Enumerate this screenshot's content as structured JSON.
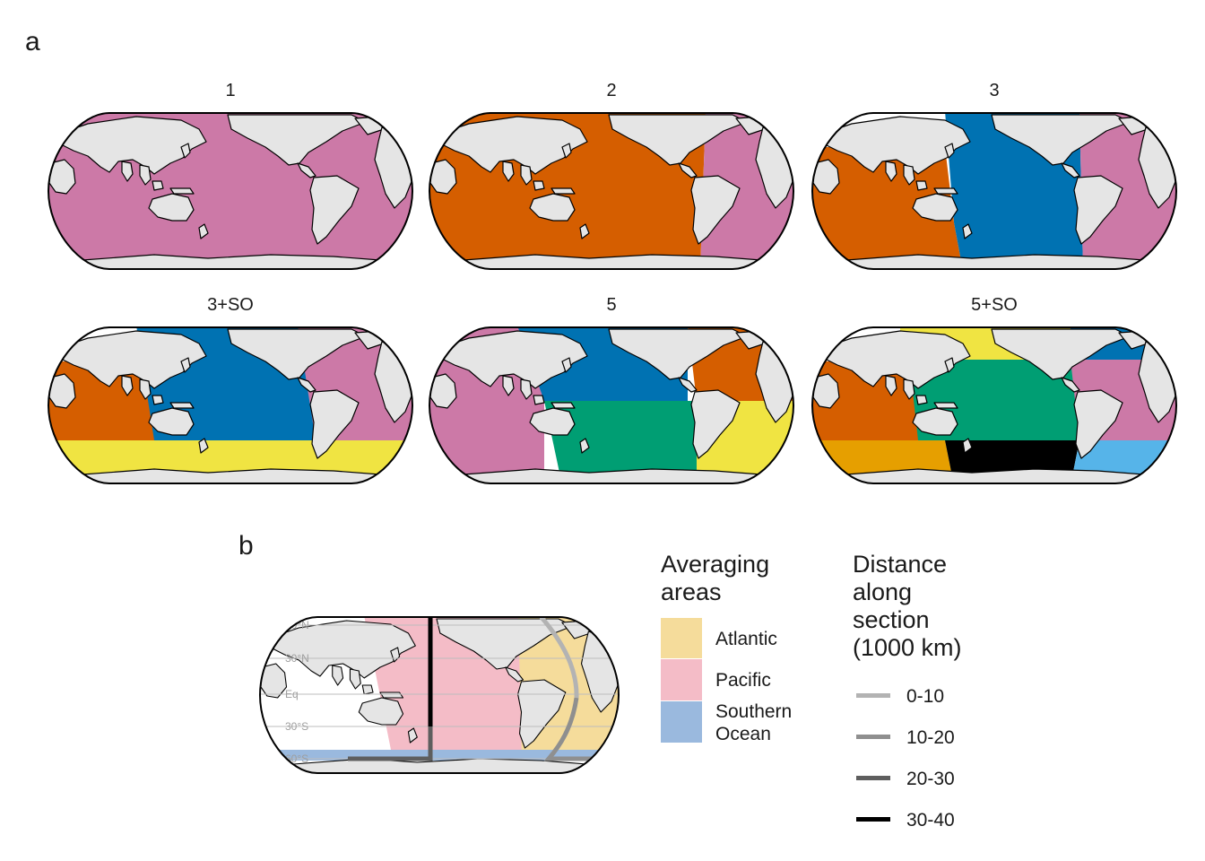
{
  "panel_a_label": "a",
  "panel_b_label": "b",
  "colors": {
    "land": "#e5e5e5",
    "pink": "#cc79a7",
    "orange": "#d55e00",
    "blue": "#0072b2",
    "yellow": "#f0e442",
    "green": "#009e73",
    "gold": "#e69f00",
    "sky": "#56b4e9",
    "black": "#000000"
  },
  "maps": [
    {
      "title": "1"
    },
    {
      "title": "2"
    },
    {
      "title": "3"
    },
    {
      "title": "3+SO"
    },
    {
      "title": "5"
    },
    {
      "title": "5+SO"
    }
  ],
  "panel_b": {
    "lat_labels": [
      "60°N",
      "30°N",
      "Eq",
      "30°S",
      "60°S"
    ]
  },
  "legend_areas": {
    "title": "Averaging\nareas",
    "items": [
      {
        "label": "Atlantic",
        "color": "#f5dc9b"
      },
      {
        "label": "Pacific",
        "color": "#f4bcc7"
      },
      {
        "label": "Southern\nOcean",
        "color": "#9ab9de"
      }
    ]
  },
  "legend_distance": {
    "title": "Distance\nalong\nsection\n(1000 km)",
    "items": [
      {
        "label": "0-10",
        "color": "#b3b3b3"
      },
      {
        "label": "10-20",
        "color": "#8f8f8f"
      },
      {
        "label": "20-30",
        "color": "#5e5e5e"
      },
      {
        "label": "30-40",
        "color": "#000000"
      }
    ]
  }
}
